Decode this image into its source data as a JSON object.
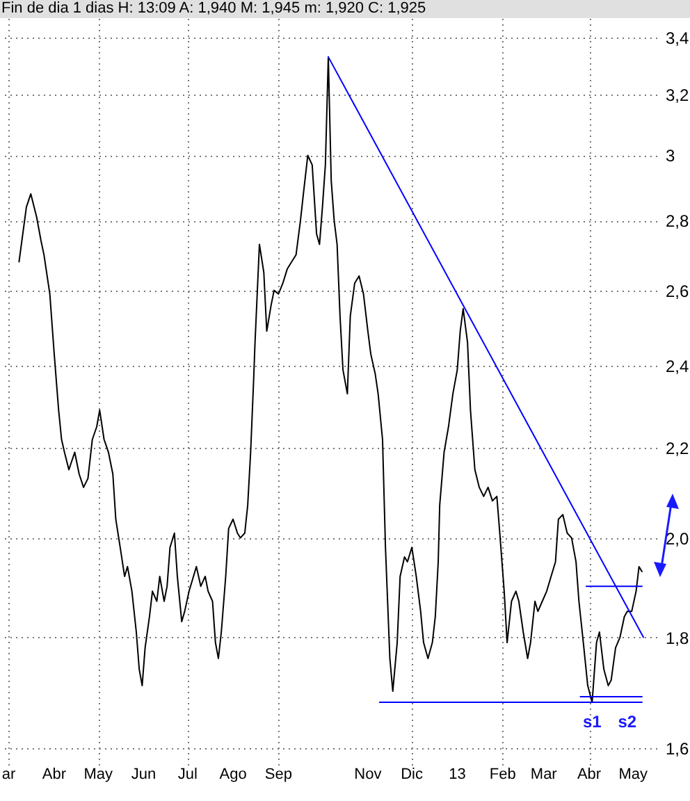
{
  "chart_data": {
    "type": "line",
    "title": "Fin de dia 1 dias H: 13:09 A: 1,940 M: 1,945 m: 1,920 C: 1,925",
    "xlim": [
      "2012-02-24",
      "2013-05-17"
    ],
    "xticks": [
      {
        "value": "2012-03-01",
        "label": "ar"
      },
      {
        "value": "2012-04-01",
        "label": "Abr"
      },
      {
        "value": "2012-05-01",
        "label": "May"
      },
      {
        "value": "2012-06-01",
        "label": "Jun"
      },
      {
        "value": "2012-07-01",
        "label": "Jul"
      },
      {
        "value": "2012-08-01",
        "label": "Ago"
      },
      {
        "value": "2012-09-01",
        "label": "Sep"
      },
      {
        "value": "2012-11-01",
        "label": "Nov"
      },
      {
        "value": "2012-12-01",
        "label": "Dic"
      },
      {
        "value": "2013-01-01",
        "label": "13"
      },
      {
        "value": "2013-02-01",
        "label": "Feb"
      },
      {
        "value": "2013-03-01",
        "label": "Mar"
      },
      {
        "value": "2013-04-01",
        "label": "Abr"
      },
      {
        "value": "2013-05-01",
        "label": "May"
      }
    ],
    "ylim": [
      1.57,
      3.47
    ],
    "yticks": [
      {
        "value": 1.6,
        "label": "1,6"
      },
      {
        "value": 1.8,
        "label": "1,8"
      },
      {
        "value": 2.0,
        "label": "2,0"
      },
      {
        "value": 2.2,
        "label": "2,2"
      },
      {
        "value": 2.4,
        "label": "2,4"
      },
      {
        "value": 2.6,
        "label": "2,6"
      },
      {
        "value": 2.8,
        "label": "2,8"
      },
      {
        "value": 3,
        "label": "3"
      },
      {
        "value": 3.2,
        "label": "3,2"
      },
      {
        "value": 3.4,
        "label": "3,4"
      }
    ],
    "log": true,
    "grid": true,
    "series": [
      {
        "color": "#000000",
        "x": [
          "2012-03-08",
          "2012-03-13",
          "2012-03-16",
          "2012-03-20",
          "2012-03-23",
          "2012-03-25",
          "2012-03-29",
          "2012-04-01",
          "2012-04-04",
          "2012-04-06",
          "2012-04-08",
          "2012-04-11",
          "2012-04-15",
          "2012-04-18",
          "2012-04-21",
          "2012-04-24",
          "2012-04-27",
          "2012-04-30",
          "2012-05-02",
          "2012-05-05",
          "2012-05-08",
          "2012-05-11",
          "2012-05-13",
          "2012-05-16",
          "2012-05-19",
          "2012-05-21",
          "2012-05-24",
          "2012-05-27",
          "2012-05-29",
          "2012-05-31",
          "2012-06-02",
          "2012-06-05",
          "2012-06-07",
          "2012-06-10",
          "2012-06-12",
          "2012-06-15",
          "2012-06-17",
          "2012-06-19",
          "2012-06-22",
          "2012-06-24",
          "2012-06-27",
          "2012-06-29",
          "2012-07-02",
          "2012-07-05",
          "2012-07-07",
          "2012-07-10",
          "2012-07-13",
          "2012-07-15",
          "2012-07-18",
          "2012-07-20",
          "2012-07-22",
          "2012-07-24",
          "2012-07-27",
          "2012-07-29",
          "2012-08-01",
          "2012-08-04",
          "2012-08-06",
          "2012-08-09",
          "2012-08-11",
          "2012-08-13",
          "2012-08-15",
          "2012-08-16",
          "2012-08-19",
          "2012-08-22",
          "2012-08-24",
          "2012-08-27",
          "2012-08-29",
          "2012-09-01",
          "2012-09-04",
          "2012-09-07",
          "2012-09-10",
          "2012-09-13",
          "2012-09-16",
          "2012-09-18",
          "2012-09-21",
          "2012-09-24",
          "2012-09-27",
          "2012-09-29",
          "2012-10-01",
          "2012-10-03",
          "2012-10-05",
          "2012-10-07",
          "2012-10-09",
          "2012-10-11",
          "2012-10-13",
          "2012-10-15",
          "2012-10-18",
          "2012-10-20",
          "2012-10-23",
          "2012-10-26",
          "2012-10-29",
          "2012-11-01",
          "2012-11-03",
          "2012-11-06",
          "2012-11-08",
          "2012-11-11",
          "2012-11-13",
          "2012-11-16",
          "2012-11-18",
          "2012-11-21",
          "2012-11-23",
          "2012-11-26",
          "2012-11-28",
          "2012-12-01",
          "2012-12-04",
          "2012-12-07",
          "2012-12-09",
          "2012-12-12",
          "2012-12-15",
          "2012-12-17",
          "2012-12-19",
          "2012-12-20",
          "2012-12-23",
          "2012-12-26",
          "2012-12-29",
          "2013-01-01",
          "2013-01-03",
          "2013-01-05",
          "2013-01-08",
          "2013-01-10",
          "2013-01-13",
          "2013-01-16",
          "2013-01-19",
          "2013-01-22",
          "2013-01-25",
          "2013-01-28",
          "2013-01-30",
          "2013-02-02",
          "2013-02-04",
          "2013-02-07",
          "2013-02-10",
          "2013-02-12",
          "2013-02-15",
          "2013-02-18",
          "2013-02-20",
          "2013-02-23",
          "2013-02-25",
          "2013-02-28",
          "2013-03-03",
          "2013-03-06",
          "2013-03-09",
          "2013-03-11",
          "2013-03-14",
          "2013-03-17",
          "2013-03-20",
          "2013-03-23",
          "2013-03-25",
          "2013-03-28",
          "2013-03-31",
          "2013-04-03",
          "2013-04-06",
          "2013-04-08",
          "2013-04-11",
          "2013-04-14",
          "2013-04-16",
          "2013-04-19",
          "2013-04-22",
          "2013-04-25",
          "2013-04-27",
          "2013-04-30",
          "2013-05-03",
          "2013-05-05",
          "2013-05-07"
        ],
        "values": [
          2.68,
          2.84,
          2.88,
          2.81,
          2.74,
          2.7,
          2.59,
          2.43,
          2.29,
          2.22,
          2.19,
          2.15,
          2.19,
          2.14,
          2.11,
          2.13,
          2.22,
          2.25,
          2.29,
          2.22,
          2.19,
          2.14,
          2.04,
          1.98,
          1.92,
          1.94,
          1.89,
          1.81,
          1.74,
          1.71,
          1.78,
          1.84,
          1.89,
          1.87,
          1.92,
          1.87,
          1.9,
          1.98,
          2.01,
          1.92,
          1.83,
          1.85,
          1.89,
          1.92,
          1.94,
          1.9,
          1.92,
          1.89,
          1.87,
          1.79,
          1.76,
          1.81,
          1.92,
          2.02,
          2.04,
          2.01,
          2.0,
          2.01,
          2.07,
          2.19,
          2.36,
          2.46,
          2.73,
          2.65,
          2.49,
          2.56,
          2.6,
          2.59,
          2.62,
          2.66,
          2.68,
          2.7,
          2.8,
          2.88,
          3.0,
          2.97,
          2.76,
          2.73,
          2.84,
          2.97,
          3.33,
          2.92,
          2.8,
          2.73,
          2.53,
          2.39,
          2.33,
          2.53,
          2.62,
          2.64,
          2.59,
          2.49,
          2.43,
          2.38,
          2.33,
          2.22,
          1.98,
          1.76,
          1.7,
          1.79,
          1.92,
          1.96,
          1.95,
          1.98,
          1.92,
          1.85,
          1.79,
          1.76,
          1.79,
          1.84,
          1.95,
          2.07,
          2.19,
          2.25,
          2.33,
          2.39,
          2.49,
          2.55,
          2.46,
          2.29,
          2.15,
          2.11,
          2.09,
          2.11,
          2.08,
          2.09,
          2.01,
          1.89,
          1.79,
          1.87,
          1.89,
          1.87,
          1.81,
          1.76,
          1.79,
          1.87,
          1.85,
          1.87,
          1.89,
          1.92,
          1.95,
          2.04,
          2.05,
          2.01,
          2.0,
          1.95,
          1.87,
          1.79,
          1.71,
          1.68,
          1.79,
          1.81,
          1.74,
          1.71,
          1.72,
          1.78,
          1.8,
          1.84,
          1.85,
          1.85,
          1.89,
          1.94,
          1.93
        ]
      },
      {
        "color": "#0000ff",
        "x": [
          "2012-10-05",
          "2013-05-08"
        ],
        "values": [
          3.33,
          1.8
        ]
      },
      {
        "color": "#0000ff",
        "x": [
          "2012-11-09",
          "2013-05-07"
        ],
        "values": [
          1.68,
          1.68
        ]
      },
      {
        "color": "#0000ff",
        "x": [
          "2013-03-26",
          "2013-05-07"
        ],
        "values": [
          1.69,
          1.69
        ]
      },
      {
        "color": "#0000ff",
        "x": [
          "2013-03-30",
          "2013-05-07"
        ],
        "values": [
          1.9,
          1.9
        ]
      }
    ],
    "annotations": [
      {
        "text": "s1",
        "x": "2013-04-03",
        "y": 1.68
      },
      {
        "text": "s2",
        "x": "2013-04-27",
        "y": 1.68
      }
    ]
  }
}
